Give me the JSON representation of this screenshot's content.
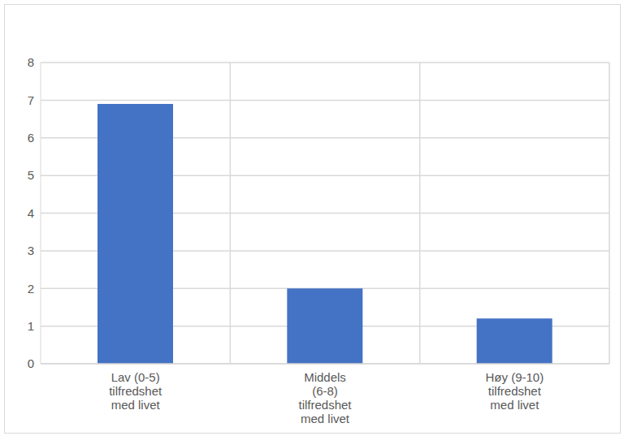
{
  "chart_data": {
    "type": "bar",
    "categories": [
      "Lav (0-5) tilfredshet med livet",
      "Middels (6-8) tilfredshet med livet",
      "Høy (9-10) tilfredshet med livet"
    ],
    "values": [
      6.9,
      2.0,
      1.2
    ],
    "color": "#4472c4",
    "ylim": [
      0,
      8
    ],
    "yticks": [
      0,
      1,
      2,
      3,
      4,
      5,
      6,
      7,
      8
    ],
    "grid": true
  }
}
